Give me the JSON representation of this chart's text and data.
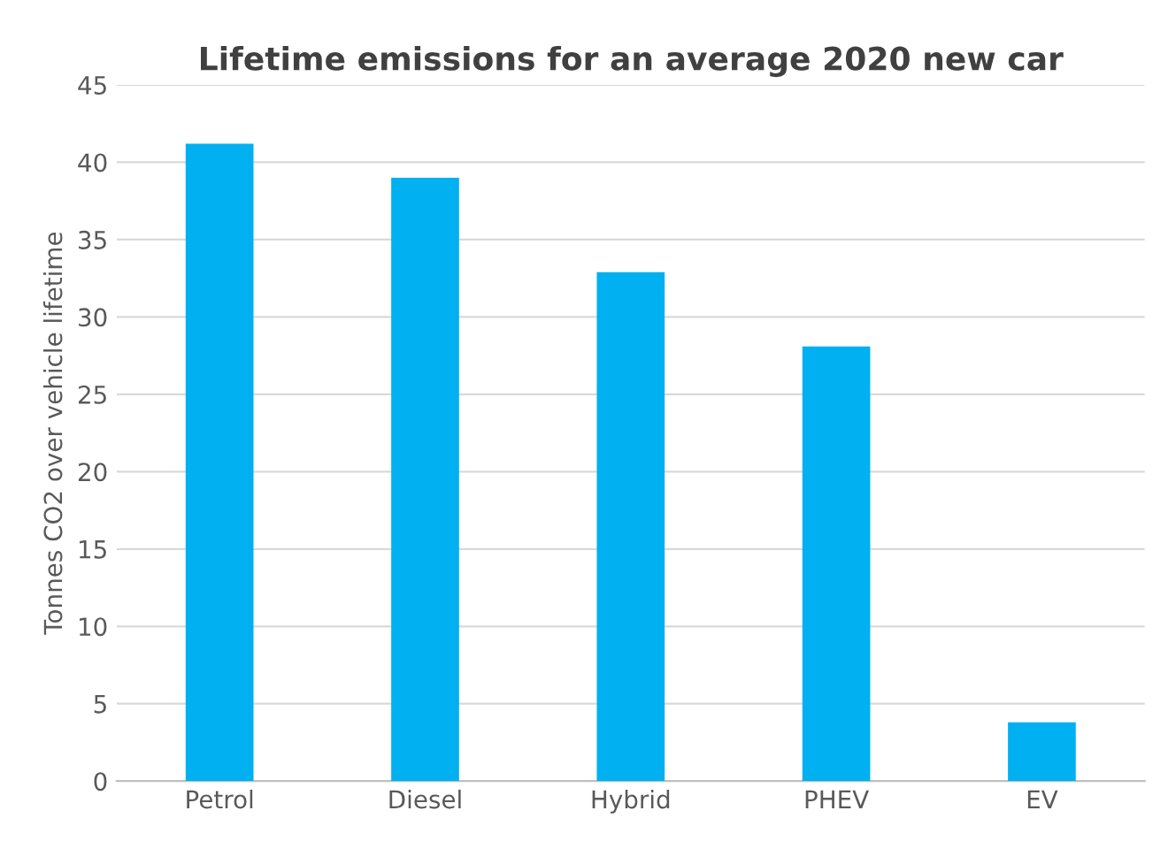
{
  "chart_data": {
    "type": "bar",
    "title": "Lifetime emissions for an average 2020 new car",
    "ylabel": "Tonnes CO2 over vehicle lifetime",
    "categories": [
      "Petrol",
      "Diesel",
      "Hybrid",
      "PHEV",
      "EV"
    ],
    "values": [
      41.2,
      39.0,
      32.9,
      28.1,
      3.8
    ],
    "color": "#00b0f0",
    "ylim": [
      0,
      45
    ],
    "yticks": [
      0,
      5,
      10,
      15,
      20,
      25,
      30,
      35,
      40,
      45
    ],
    "grid": "y",
    "legend": false
  }
}
